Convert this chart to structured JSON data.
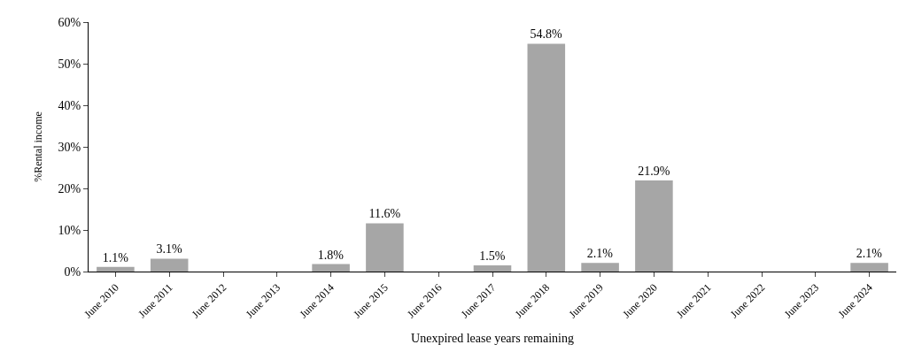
{
  "chart_data": {
    "type": "bar",
    "xlabel": "Unexpired lease years remaining",
    "ylabel": "%Rental income",
    "categories": [
      "June 2010",
      "June 2011",
      "June 2012",
      "June 2013",
      "June 2014",
      "June 2015",
      "June 2016",
      "June 2017",
      "June 2018",
      "June 2019",
      "June 2020",
      "June 2021",
      "June 2022",
      "June 2023",
      "June 2024"
    ],
    "values": [
      1.1,
      3.1,
      0,
      0,
      1.8,
      11.6,
      0,
      1.5,
      54.8,
      2.1,
      21.9,
      0,
      0,
      0,
      2.1
    ],
    "value_labels": [
      "1.1%",
      "3.1%",
      null,
      null,
      "1.8%",
      "11.6%",
      null,
      "1.5%",
      "54.8%",
      "2.1%",
      "21.9%",
      null,
      null,
      null,
      "2.1%"
    ],
    "color": "#a6a6a6",
    "ylim": [
      0,
      60
    ],
    "yticks": [
      {
        "value": 0,
        "label": "0%"
      },
      {
        "value": 10,
        "label": "10%"
      },
      {
        "value": 20,
        "label": "20%"
      },
      {
        "value": 30,
        "label": "30%"
      },
      {
        "value": 40,
        "label": "40%"
      },
      {
        "value": 50,
        "label": "50%"
      },
      {
        "value": 60,
        "label": "60%"
      }
    ]
  }
}
